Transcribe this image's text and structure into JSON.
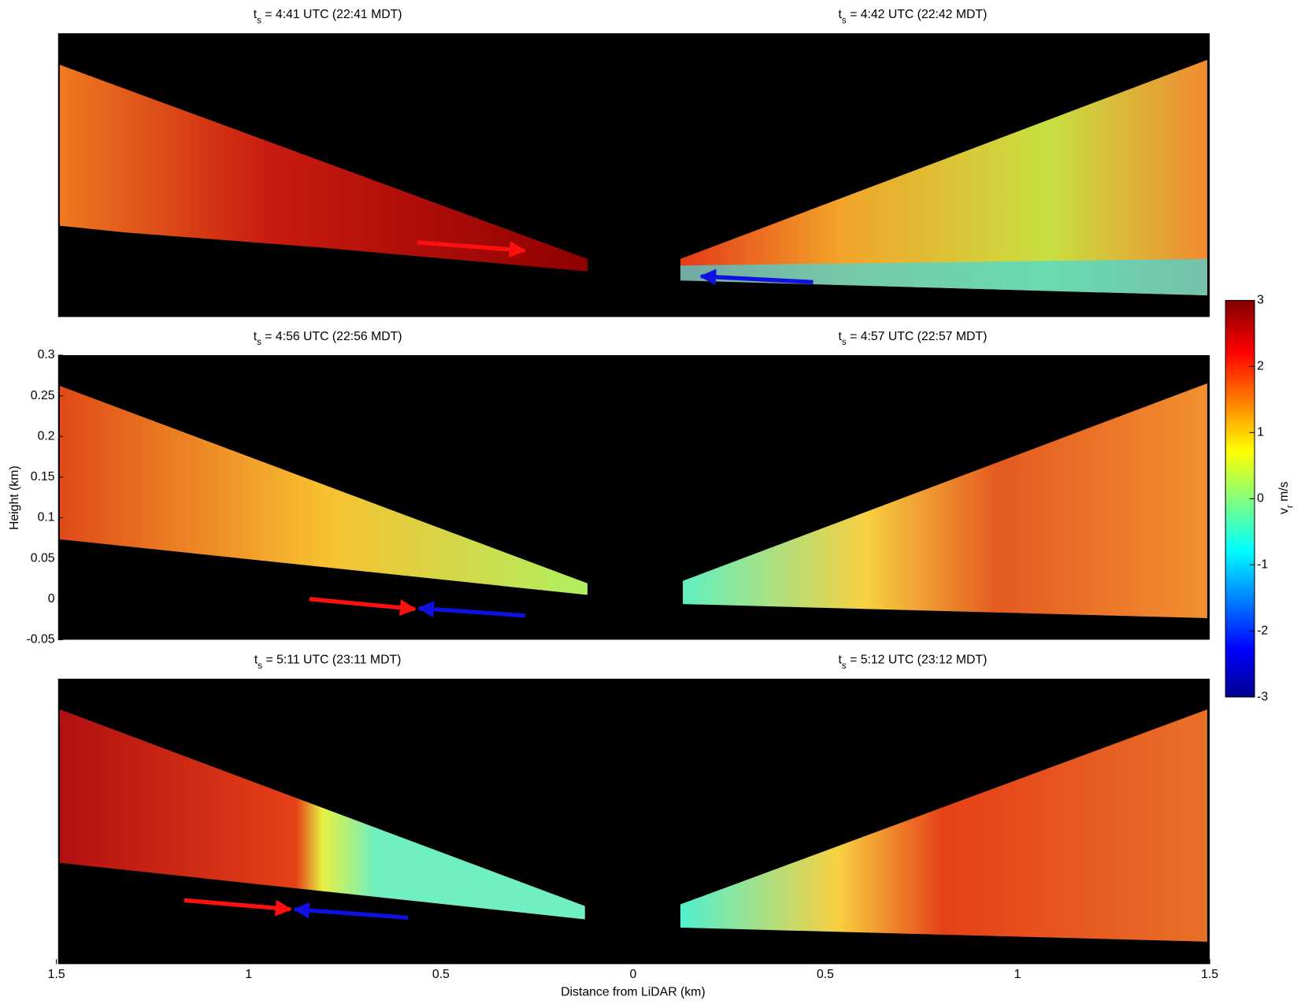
{
  "chart_data": {
    "type": "heatmap",
    "panels": [
      {
        "titles": [
          {
            "symbol": "t",
            "subscript": "s",
            "text": " = 4:41 UTC (22:41 MDT)"
          },
          {
            "symbol": "t",
            "subscript": "s",
            "text": " = 4:42 UTC (22:42 MDT)"
          }
        ]
      },
      {
        "titles": [
          {
            "symbol": "t",
            "subscript": "s",
            "text": " = 4:56 UTC (22:56 MDT)"
          },
          {
            "symbol": "t",
            "subscript": "s",
            "text": " = 4:57 UTC (22:57 MDT)"
          }
        ]
      },
      {
        "titles": [
          {
            "symbol": "t",
            "subscript": "s",
            "text": " = 5:11 UTC (23:11 MDT)"
          },
          {
            "symbol": "t",
            "subscript": "s",
            "text": " = 5:12 UTC (23:12 MDT)"
          }
        ]
      }
    ],
    "xlabel": "Distance from LiDAR (km)",
    "ylabel": "Height (km)",
    "xlim": [
      -1.5,
      1.5
    ],
    "xticks": [
      {
        "value": -1.5,
        "label": "1.5"
      },
      {
        "value": -1,
        "label": "1"
      },
      {
        "value": -0.5,
        "label": "0.5"
      },
      0,
      0.5,
      1,
      1.5
    ],
    "ylim": [
      -0.05,
      0.3
    ],
    "yticks": [
      -0.05,
      0,
      0.05,
      0.1,
      0.15,
      0.2,
      0.25,
      0.3
    ],
    "colorbar": {
      "label": {
        "symbol": "v",
        "subscript": "r",
        "text": " m/s"
      },
      "clim": [
        -3,
        3
      ],
      "ticks": [
        -3,
        -2,
        -1,
        0,
        1,
        2,
        3
      ]
    }
  }
}
